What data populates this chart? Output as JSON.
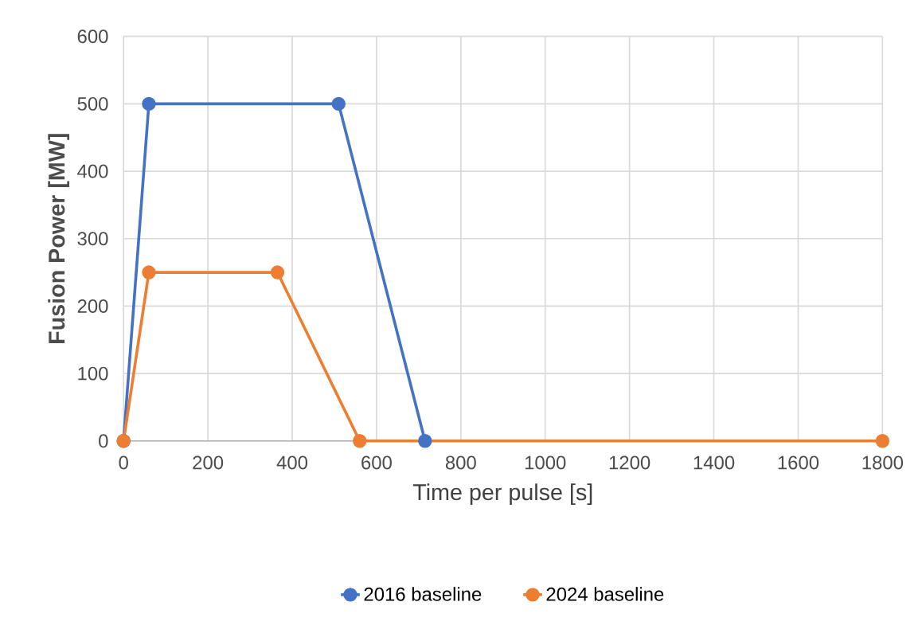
{
  "chart_data": {
    "type": "line",
    "xlabel": "Time per pulse [s]",
    "ylabel": "Fusion Power [MW]",
    "xlim": [
      0,
      1800
    ],
    "xticks": [
      0,
      200,
      400,
      600,
      800,
      1000,
      1200,
      1400,
      1600,
      1800
    ],
    "ylim": [
      0,
      600
    ],
    "yticks": [
      0,
      100,
      200,
      300,
      400,
      500,
      600
    ],
    "grid": true,
    "legend": "bottom",
    "marker": "circle",
    "line_style": "solid",
    "series": [
      {
        "name": "2016 baseline",
        "color": "#4472c4",
        "x": [
          0,
          60,
          510,
          715
        ],
        "values": [
          0,
          500,
          500,
          0
        ]
      },
      {
        "name": "2024 baseline",
        "color": "#ed7d31",
        "x": [
          0,
          60,
          365,
          560,
          1800
        ],
        "values": [
          0,
          250,
          250,
          0,
          0
        ]
      }
    ]
  }
}
